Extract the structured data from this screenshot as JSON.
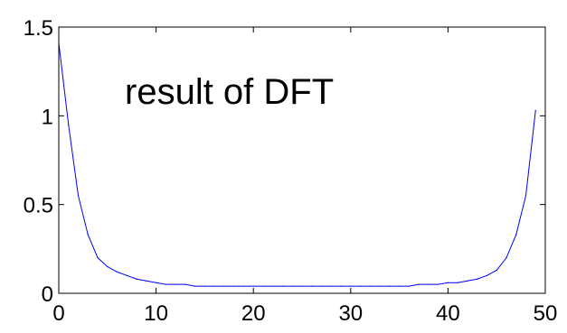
{
  "chart_data": {
    "type": "line",
    "title": "",
    "xlabel": "",
    "ylabel": "",
    "annotation": "result of DFT",
    "xlim": [
      0,
      50
    ],
    "ylim": [
      0,
      1.5
    ],
    "xticks": [
      0,
      10,
      20,
      30,
      40,
      50
    ],
    "yticks": [
      0,
      0.5,
      1,
      1.5
    ],
    "xtick_labels": [
      "0",
      "10",
      "20",
      "30",
      "40",
      "50"
    ],
    "ytick_labels": [
      "0",
      "0.5",
      "1",
      "1.5"
    ],
    "grid": false,
    "legend": "none",
    "series": [
      {
        "color": "#0000ff",
        "x": [
          0,
          1,
          2,
          3,
          4,
          5,
          6,
          7,
          8,
          9,
          10,
          11,
          12,
          13,
          14,
          15,
          16,
          17,
          18,
          19,
          20,
          21,
          22,
          23,
          24,
          25,
          26,
          27,
          28,
          29,
          30,
          31,
          32,
          33,
          34,
          35,
          36,
          37,
          38,
          39,
          40,
          41,
          42,
          43,
          44,
          45,
          46,
          47,
          48,
          49
        ],
        "y": [
          1.41,
          0.95,
          0.55,
          0.33,
          0.2,
          0.15,
          0.12,
          0.1,
          0.08,
          0.07,
          0.06,
          0.05,
          0.05,
          0.05,
          0.04,
          0.04,
          0.04,
          0.04,
          0.04,
          0.04,
          0.04,
          0.04,
          0.04,
          0.04,
          0.04,
          0.04,
          0.04,
          0.04,
          0.04,
          0.04,
          0.04,
          0.04,
          0.04,
          0.04,
          0.04,
          0.04,
          0.04,
          0.05,
          0.05,
          0.05,
          0.06,
          0.06,
          0.07,
          0.08,
          0.1,
          0.13,
          0.2,
          0.33,
          0.55,
          1.03
        ]
      }
    ]
  }
}
